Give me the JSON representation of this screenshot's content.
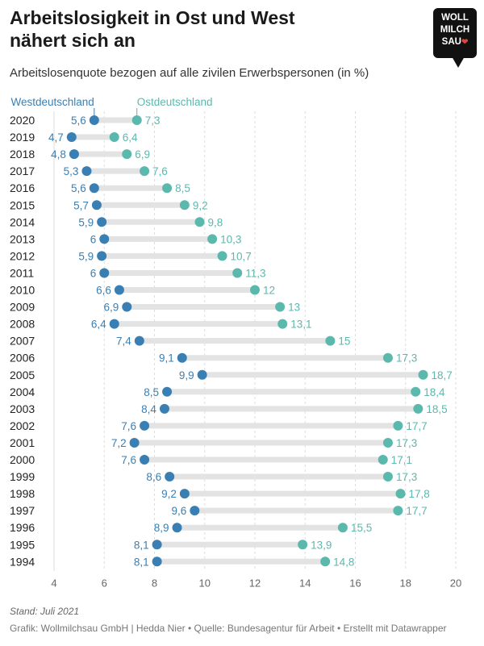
{
  "header": {
    "title": "Arbeitslosigkeit in Ost und West nähert sich an",
    "subtitle": "Arbeitslosenquote bezogen auf alle zivilen Erwerbspersonen (in %)"
  },
  "logo": {
    "line1": "WOLL",
    "line2": "MILCH",
    "line3": "SAU"
  },
  "footer": {
    "stand": "Stand: Juli 2021",
    "credit": "Grafik: Wollmilchsau GmbH | Hedda Nier • Quelle: Bundesagentur für Arbeit • Erstellt mit Datawrapper"
  },
  "colors": {
    "west": "#3a7fb3",
    "ost": "#5bb8ad",
    "bar": "#e3e3e3",
    "grid": "#dddddd"
  },
  "chart_data": {
    "type": "dot-range",
    "xlim": [
      4,
      20
    ],
    "xticks": [
      4,
      6,
      8,
      10,
      12,
      14,
      16,
      18,
      20
    ],
    "grid": true,
    "series": [
      {
        "name": "Westdeutschland",
        "values": [
          5.6,
          4.7,
          4.8,
          5.3,
          5.6,
          5.7,
          5.9,
          6,
          5.9,
          6,
          6.6,
          6.9,
          6.4,
          7.4,
          9.1,
          9.9,
          8.5,
          8.4,
          7.6,
          7.2,
          7.6,
          8.6,
          9.2,
          9.6,
          8.9,
          8.1,
          8.1
        ]
      },
      {
        "name": "Ostdeutschland",
        "values": [
          7.3,
          6.4,
          6.9,
          7.6,
          8.5,
          9.2,
          9.8,
          10.3,
          10.7,
          11.3,
          12,
          13,
          13.1,
          15,
          17.3,
          18.7,
          18.4,
          18.5,
          17.7,
          17.3,
          17.1,
          17.3,
          17.8,
          17.7,
          15.5,
          13.9,
          14.8
        ]
      }
    ],
    "categories": [
      "2020",
      "2019",
      "2018",
      "2017",
      "2016",
      "2015",
      "2014",
      "2013",
      "2012",
      "2011",
      "2010",
      "2009",
      "2008",
      "2007",
      "2006",
      "2005",
      "2004",
      "2003",
      "2002",
      "2001",
      "2000",
      "1999",
      "1998",
      "1997",
      "1996",
      "1995",
      "1994"
    ]
  }
}
